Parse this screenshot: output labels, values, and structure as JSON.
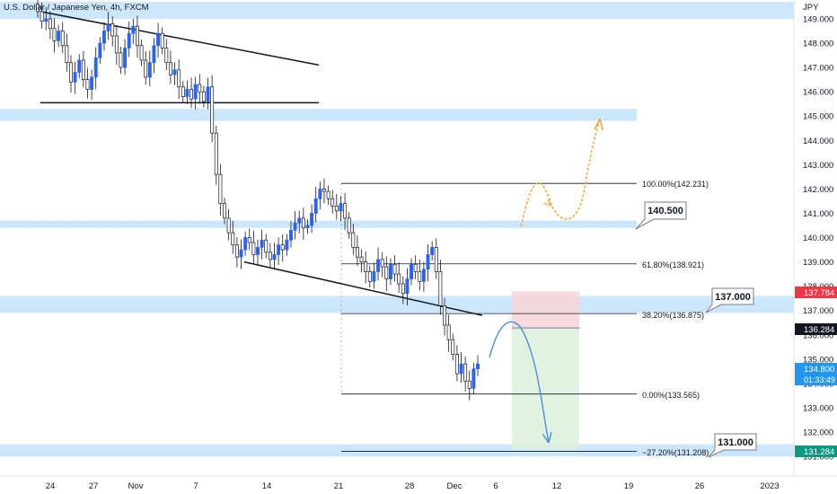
{
  "header": {
    "symbol_title": "U.S. Dollar / Japanese Yen, 4h, FXCM",
    "currency": "JPY"
  },
  "price_axis": {
    "ticks": [
      "149.000",
      "148.000",
      "147.000",
      "146.000",
      "145.000",
      "144.000",
      "143.000",
      "142.000",
      "141.000",
      "140.000",
      "139.000",
      "138.000",
      "137.000",
      "136.000",
      "135.000",
      "134.000",
      "133.000",
      "132.000",
      "131.000"
    ]
  },
  "price_tags": {
    "stop": {
      "label": "137.784",
      "color": "#f23645"
    },
    "entry": {
      "label": "136.284",
      "color": "#131722"
    },
    "last": {
      "label": "134.800",
      "countdown": "01:33:49",
      "color": "#2196f3"
    },
    "target": {
      "label": "131.284",
      "color": "#089981"
    }
  },
  "time_axis": {
    "labels": [
      "24",
      "27",
      "Nov",
      "7",
      "14",
      "21",
      "28",
      "Dec",
      "6",
      "12",
      "19",
      "26",
      "2023"
    ]
  },
  "levels": {
    "callout_140": "140.500",
    "callout_137": "137.000",
    "callout_131": "131.000"
  },
  "fib": {
    "f100": "100.00%(142.231)",
    "f618": "61.80%(138.921)",
    "f382": "38.20%(136.875)",
    "f000": "0.00%(133.565)",
    "fext": "−27.20%(131.208)"
  },
  "colors": {
    "zone": "#bbdefb",
    "bull": "#2962ff",
    "bear": "#ffffff",
    "wick": "#131722",
    "orange_arrow": "#f7a440",
    "blue_arrow": "#4a90e2",
    "risk_zone": "#f8d4d8",
    "reward_zone": "#dcf0dc"
  },
  "chart_data": {
    "type": "candlestick",
    "title": "U.S. Dollar / Japanese Yen, 4h, FXCM",
    "ylabel": "JPY",
    "ylim": [
      130.6,
      149.7
    ],
    "x_labels": [
      "24",
      "27",
      "Nov",
      "7",
      "14",
      "21",
      "28",
      "Dec",
      "6",
      "12",
      "19",
      "26",
      "2023"
    ],
    "support_resistance_zones": [
      [
        149.0,
        149.7
      ],
      [
        144.8,
        145.3
      ],
      [
        140.4,
        140.7
      ],
      [
        136.9,
        137.6
      ],
      [
        131.0,
        131.5
      ]
    ],
    "fibonacci": [
      {
        "level": "100.00%",
        "price": 142.231
      },
      {
        "level": "61.80%",
        "price": 138.921
      },
      {
        "level": "38.20%",
        "price": 136.875
      },
      {
        "level": "0.00%",
        "price": 133.565
      },
      {
        "level": "-27.20%",
        "price": 131.208
      }
    ],
    "position": {
      "stop": 137.784,
      "entry": 136.284,
      "target": 131.284
    },
    "last_price": 134.8,
    "closes": [
      149.3,
      148.9,
      149.0,
      148.6,
      148.1,
      148.5,
      147.9,
      147.2,
      146.4,
      146.8,
      147.3,
      146.5,
      146.1,
      146.6,
      147.4,
      148.0,
      148.5,
      148.8,
      148.3,
      147.6,
      147.0,
      147.8,
      148.4,
      148.7,
      147.9,
      147.3,
      146.6,
      147.2,
      147.9,
      148.4,
      147.8,
      147.2,
      146.7,
      146.9,
      146.2,
      145.8,
      146.1,
      145.7,
      146.3,
      146.0,
      145.6,
      146.2,
      144.3,
      142.6,
      141.4,
      140.8,
      140.2,
      139.7,
      139.2,
      139.5,
      140.0,
      139.8,
      139.3,
      139.6,
      139.9,
      139.4,
      139.1,
      139.3,
      139.7,
      139.5,
      139.9,
      140.3,
      140.6,
      140.8,
      140.4,
      140.5,
      141.0,
      141.6,
      142.0,
      141.9,
      141.6,
      141.3,
      141.1,
      141.4,
      140.8,
      140.2,
      139.6,
      139.2,
      139.0,
      138.6,
      138.2,
      138.6,
      139.1,
      138.8,
      138.3,
      138.9,
      138.5,
      138.1,
      137.7,
      138.3,
      138.9,
      138.6,
      138.2,
      138.7,
      139.3,
      139.6,
      138.6,
      137.2,
      136.4,
      135.8,
      135.2,
      134.4,
      134.8,
      134.1,
      133.8,
      134.6,
      134.8
    ]
  }
}
